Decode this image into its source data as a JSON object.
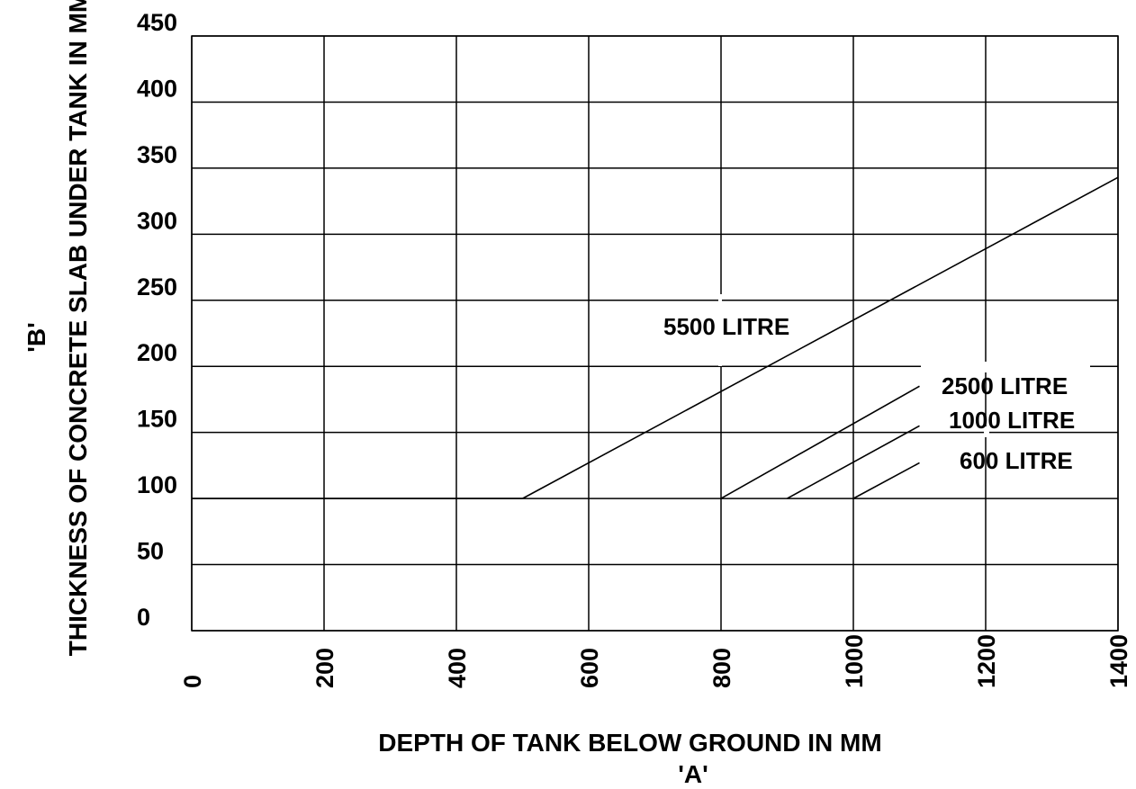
{
  "chart_data": {
    "type": "line",
    "title": "",
    "xlabel": "DEPTH OF TANK BELOW GROUND IN MM",
    "xlabel_symbol": "'A'",
    "ylabel": "THICKNESS OF CONCRETE SLAB UNDER TANK IN MM",
    "ylabel_symbol": "'B'",
    "xlim": [
      0,
      1400
    ],
    "ylim": [
      0,
      450
    ],
    "x_ticks": [
      "0",
      "200",
      "400",
      "600",
      "800",
      "1000",
      "1200",
      "1400"
    ],
    "y_ticks": [
      "0",
      "50",
      "100",
      "150",
      "200",
      "250",
      "300",
      "350",
      "400",
      "450"
    ],
    "grid": true,
    "legend": "none",
    "colors": {
      "line": "#000000",
      "grid": "#000000",
      "background": "#ffffff"
    },
    "baseline": {
      "x": [
        0,
        500
      ],
      "y": [
        100,
        100
      ]
    },
    "series": [
      {
        "name": "5500 LITRE",
        "x": [
          500,
          1400
        ],
        "y": [
          100,
          343
        ]
      },
      {
        "name": "2500 LITRE",
        "x": [
          800,
          1100
        ],
        "y": [
          100,
          185
        ]
      },
      {
        "name": "1000 LITRE",
        "x": [
          900,
          1100
        ],
        "y": [
          100,
          155
        ]
      },
      {
        "name": "600 LITRE",
        "x": [
          1000,
          1100
        ],
        "y": [
          100,
          127
        ]
      }
    ]
  }
}
